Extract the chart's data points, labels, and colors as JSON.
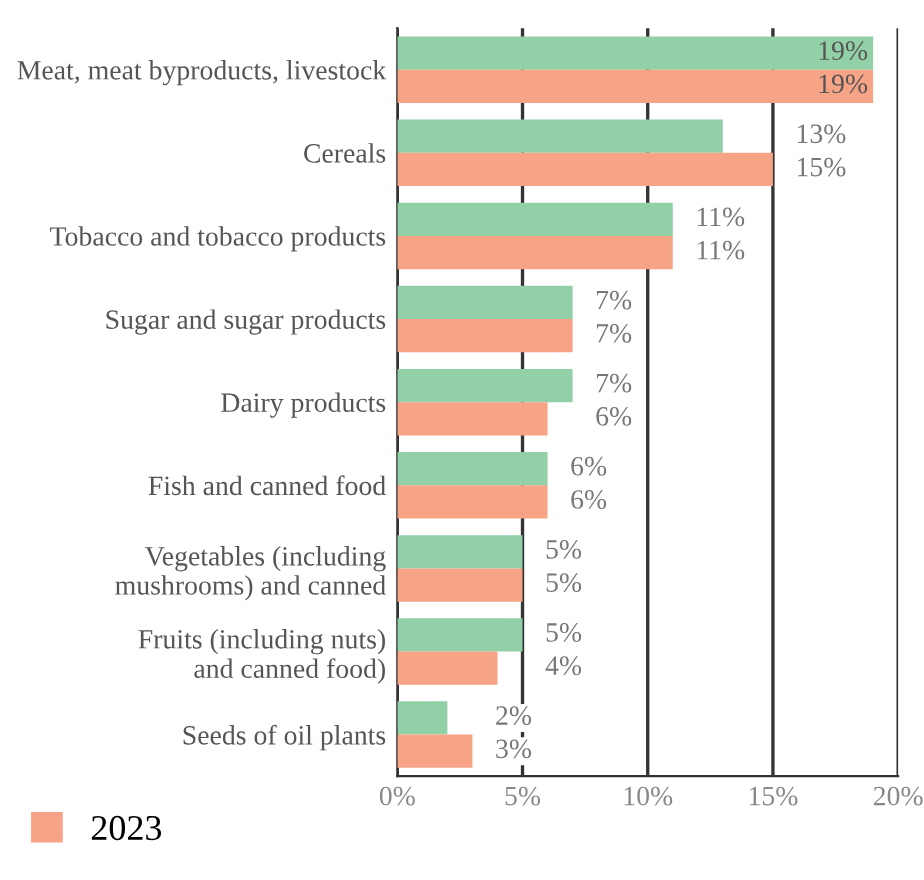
{
  "chart_data": {
    "type": "bar",
    "orientation": "horizontal",
    "categories": [
      "Meat, meat byproducts, livestock",
      "Cereals",
      "Tobacco and tobacco products",
      "Sugar and sugar products",
      "Dairy products",
      "Fish and canned food",
      "Vegetables (including\nmushrooms) and canned",
      "Fruits (including nuts)\nand canned food)",
      "Seeds of oil plants"
    ],
    "series": [
      {
        "color": "#92d0a8",
        "values": [
          19,
          13,
          11,
          7,
          7,
          6,
          5,
          5,
          2
        ],
        "value_labels": [
          "19%",
          "13%",
          "11%",
          "7%",
          "7%",
          "6%",
          "5%",
          "5%",
          "2%"
        ]
      },
      {
        "name": "2023",
        "color": "#f6a386",
        "values": [
          19,
          15,
          11,
          7,
          6,
          6,
          5,
          4,
          3
        ],
        "value_labels": [
          "19%",
          "15%",
          "11%",
          "7%",
          "6%",
          "6%",
          "5%",
          "4%",
          "3%"
        ]
      }
    ],
    "xlim": [
      0,
      20
    ],
    "xticks": [
      {
        "value": 0,
        "label": "0%"
      },
      {
        "value": 5,
        "label": "5%"
      },
      {
        "value": 10,
        "label": "10%"
      },
      {
        "value": 15,
        "label": "15%"
      },
      {
        "value": 20,
        "label": "20%"
      }
    ],
    "grid": "x",
    "legend": "bottom left"
  }
}
